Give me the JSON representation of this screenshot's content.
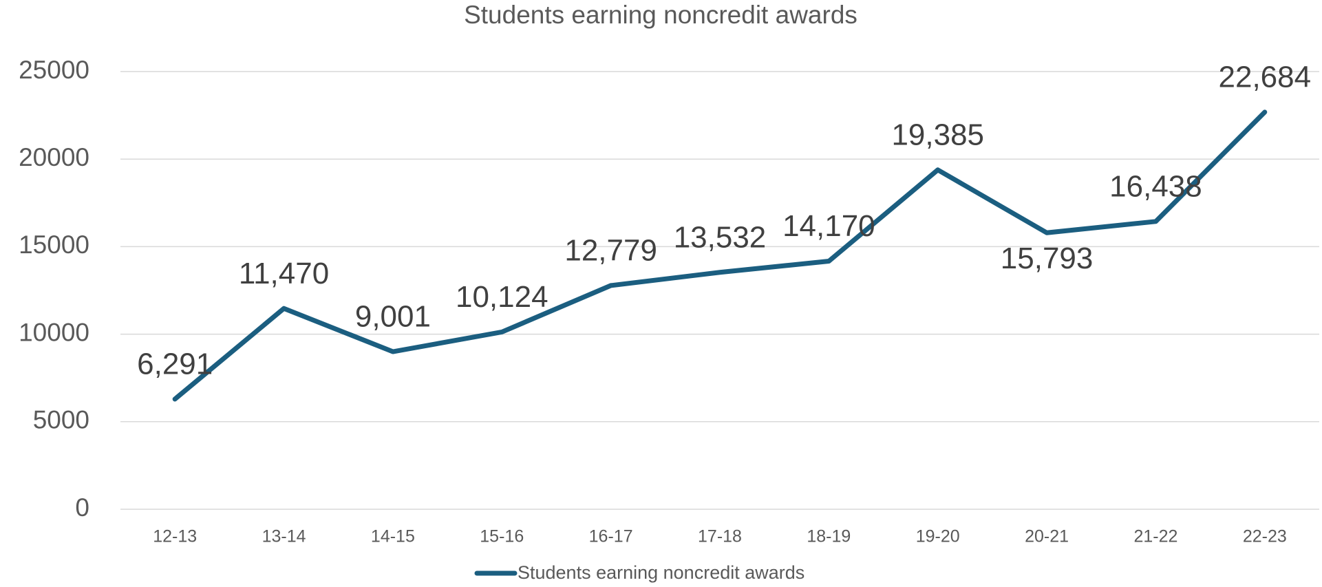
{
  "chart_data": {
    "type": "line",
    "title": "Students earning noncredit awards",
    "categories": [
      "12-13",
      "13-14",
      "14-15",
      "15-16",
      "16-17",
      "17-18",
      "18-19",
      "19-20",
      "20-21",
      "21-22",
      "22-23"
    ],
    "series": [
      {
        "name": "Students earning noncredit awards",
        "color": "#1b5e80",
        "values": [
          6291,
          11470,
          9001,
          10124,
          12779,
          13532,
          14170,
          19385,
          15793,
          16438,
          22684
        ],
        "value_labels": [
          "6,291",
          "11,470",
          "9,001",
          "10,124",
          "12,779",
          "13,532",
          "14,170",
          "19,385",
          "15,793",
          "16,438",
          "22,684"
        ]
      }
    ],
    "ylim": [
      0,
      25000
    ],
    "yticks": [
      0,
      5000,
      10000,
      15000,
      20000,
      25000
    ],
    "grid": true,
    "legend": "bottom"
  }
}
